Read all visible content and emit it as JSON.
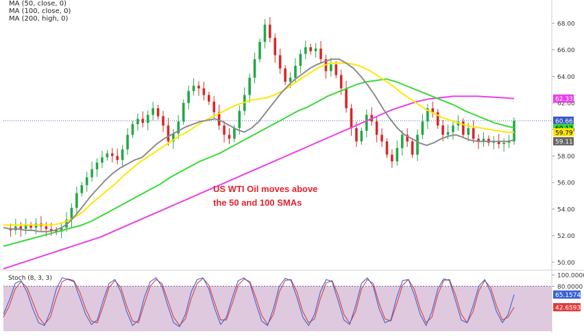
{
  "legend": {
    "ma50": "MA (50, close, 0)",
    "ma100": "MA (100, close, 0)",
    "ma200": "MA (200, high, 0)"
  },
  "annotation": {
    "line1": "US WTI Oil moves above",
    "line2": "the 50 and 100 SMAs"
  },
  "colors": {
    "ma50": "#8a8a8a",
    "ma100": "#ffe600",
    "ma200": "#39d836",
    "ma_high": "#e83ee8",
    "bull": "#22a845",
    "bear": "#d62828",
    "stoch_fill": "#d8bfd8",
    "stoch_k": "#3a62d6",
    "stoch_d": "#e33a3a",
    "price_line": "#3a56c8",
    "annotation": "#e8202a"
  },
  "chart_data": [
    {
      "type": "line",
      "title": "",
      "ylim": [
        49.5,
        69.5
      ],
      "yticks": [
        "68.00",
        "66.00",
        "64.00",
        "62.00",
        "60.00",
        "58.00",
        "56.00",
        "54.00",
        "52.00",
        "50.00"
      ],
      "current_price": 60.66,
      "price_labels": [
        {
          "text": "62.33",
          "value": 62.33,
          "color": "#e83ee8",
          "text_color": "#ffffff"
        },
        {
          "text": "60.66",
          "value": 60.66,
          "color": "#3a56c8",
          "text_color": "#ffffff"
        },
        {
          "text": "60.12",
          "value": 60.12,
          "color": "#39d836",
          "text_color": "#000000"
        },
        {
          "text": "59.79",
          "value": 59.79,
          "color": "#ffe600",
          "text_color": "#000000"
        },
        {
          "text": "59.11",
          "value": 59.11,
          "color": "#666666",
          "text_color": "#ffffff"
        }
      ],
      "price_series": [
        52.5,
        52.4,
        52.7,
        52.5,
        52.8,
        52.6,
        52.9,
        52.7,
        52.5,
        52.4,
        52.3,
        52.6,
        53.2,
        54.1,
        55.2,
        55.8,
        56.4,
        57.0,
        57.5,
        57.9,
        58.2,
        58.0,
        57.7,
        58.5,
        59.6,
        60.4,
        60.8,
        60.5,
        61.1,
        61.6,
        61.0,
        60.3,
        59.1,
        59.7,
        60.6,
        62.0,
        62.9,
        63.3,
        63.1,
        62.6,
        62.1,
        61.3,
        60.3,
        59.6,
        59.3,
        60.1,
        61.4,
        62.6,
        63.9,
        65.3,
        66.6,
        67.9,
        66.9,
        65.6,
        64.6,
        63.6,
        63.9,
        64.8,
        65.7,
        66.2,
        65.9,
        66.1,
        65.3,
        64.4,
        64.9,
        64.1,
        63.1,
        61.6,
        60.1,
        59.1,
        59.9,
        61.1,
        60.6,
        59.6,
        59.1,
        58.1,
        57.6,
        58.6,
        59.6,
        59.1,
        58.1,
        59.6,
        60.6,
        61.6,
        61.3,
        60.3,
        59.6,
        59.8,
        60.3,
        60.6,
        59.6,
        60.1,
        59.3,
        59.1,
        59.3,
        59.0,
        59.1,
        58.9,
        59.0,
        59.1,
        60.66
      ],
      "ma50": [
        52.6,
        52.5,
        52.5,
        52.4,
        52.4,
        52.3,
        52.3,
        52.4,
        52.6,
        53.0,
        53.6,
        54.3,
        55.0,
        55.6,
        56.2,
        56.7,
        57.1,
        57.4,
        57.7,
        57.9,
        58.4,
        58.9,
        59.3,
        59.6,
        59.9,
        60.2,
        60.4,
        60.6,
        60.7,
        60.8,
        60.6,
        60.3,
        60.0,
        59.8,
        60.1,
        60.6,
        61.3,
        62.0,
        62.7,
        63.3,
        63.8,
        64.2,
        64.6,
        64.9,
        65.1,
        65.3,
        65.3,
        65.0,
        64.6,
        64.0,
        63.3,
        62.5,
        61.6,
        60.8,
        60.1,
        59.6,
        59.3,
        59.0,
        58.8,
        59.0,
        59.3,
        59.5,
        59.6,
        59.4,
        59.2,
        59.1,
        59.1,
        59.1,
        59.1,
        59.1,
        59.2
      ],
      "ma100": [
        52.8,
        52.8,
        52.8,
        52.8,
        52.8,
        52.8,
        52.8,
        52.9,
        53.1,
        53.4,
        53.8,
        54.4,
        54.9,
        55.4,
        55.9,
        56.5,
        57.0,
        57.5,
        57.9,
        58.3,
        58.7,
        59.1,
        59.5,
        59.8,
        60.2,
        60.6,
        60.9,
        61.2,
        61.5,
        61.8,
        62.0,
        62.2,
        62.3,
        62.4,
        62.6,
        62.9,
        63.3,
        63.7,
        64.1,
        64.5,
        64.8,
        65.0,
        65.0,
        65.0,
        64.9,
        64.7,
        64.4,
        64.0,
        63.6,
        63.2,
        62.7,
        62.3,
        61.9,
        61.5,
        61.2,
        60.9,
        60.7,
        60.5,
        60.3,
        60.2,
        60.1,
        60.0,
        59.9,
        59.8,
        59.79
      ],
      "ma200": [
        51.2,
        51.4,
        51.6,
        51.8,
        52.0,
        52.2,
        52.4,
        52.6,
        52.8,
        53.1,
        53.5,
        53.9,
        54.3,
        54.7,
        55.1,
        55.5,
        55.9,
        56.4,
        56.8,
        57.2,
        57.6,
        57.9,
        58.2,
        58.6,
        59.0,
        59.4,
        59.8,
        60.2,
        60.6,
        61.0,
        61.4,
        61.7,
        62.1,
        62.5,
        62.8,
        63.1,
        63.4,
        63.6,
        63.7,
        63.8,
        63.6,
        63.3,
        63.0,
        62.7,
        62.4,
        62.1,
        61.8,
        61.4,
        61.1,
        60.8,
        60.5,
        60.3,
        60.12
      ],
      "ma_high": [
        49.5,
        49.8,
        50.1,
        50.4,
        50.7,
        51.0,
        51.3,
        51.6,
        51.9,
        52.3,
        52.7,
        53.1,
        53.5,
        53.9,
        54.3,
        54.7,
        55.1,
        55.5,
        55.9,
        56.3,
        56.7,
        57.1,
        57.5,
        57.9,
        58.3,
        58.7,
        59.1,
        59.5,
        59.9,
        60.3,
        60.7,
        61.1,
        61.5,
        61.8,
        62.1,
        62.3,
        62.4,
        62.5,
        62.5,
        62.5,
        62.45,
        62.4,
        62.33
      ]
    },
    {
      "type": "line",
      "title": "Stoch (8, 3, 3)",
      "ylim": [
        0,
        100
      ],
      "yticks": [
        "100.0000",
        "80.0000"
      ],
      "overbought": 80,
      "oversold": 20,
      "price_labels": [
        {
          "text": "65.1574",
          "value": 65.1574,
          "color": "#3a62d6",
          "text_color": "#ffffff"
        },
        {
          "text": "42.6593",
          "value": 42.6593,
          "color": "#e33a3a",
          "text_color": "#ffffff"
        }
      ],
      "k": [
        30,
        55,
        85,
        90,
        70,
        40,
        15,
        10,
        35,
        75,
        95,
        92,
        88,
        60,
        30,
        12,
        20,
        55,
        85,
        92,
        70,
        35,
        10,
        20,
        60,
        88,
        95,
        80,
        45,
        15,
        8,
        30,
        70,
        92,
        95,
        75,
        40,
        12,
        25,
        60,
        90,
        95,
        85,
        50,
        18,
        10,
        40,
        80,
        94,
        90,
        60,
        25,
        10,
        30,
        70,
        92,
        88,
        55,
        20,
        12,
        45,
        85,
        95,
        80,
        40,
        15,
        20,
        60,
        90,
        92,
        65,
        30,
        10,
        35,
        75,
        93,
        90,
        55,
        20,
        15,
        45,
        80,
        92,
        70,
        35,
        15,
        30,
        65.1574
      ],
      "d": [
        25,
        45,
        75,
        88,
        78,
        52,
        25,
        12,
        25,
        60,
        88,
        93,
        90,
        70,
        40,
        18,
        15,
        45,
        78,
        90,
        78,
        45,
        18,
        15,
        48,
        80,
        92,
        85,
        55,
        25,
        10,
        22,
        58,
        85,
        94,
        82,
        50,
        20,
        20,
        50,
        82,
        93,
        88,
        60,
        28,
        12,
        30,
        70,
        90,
        92,
        70,
        35,
        15,
        22,
        58,
        86,
        90,
        65,
        30,
        14,
        35,
        75,
        92,
        85,
        50,
        22,
        18,
        48,
        82,
        92,
        75,
        40,
        15,
        25,
        65,
        90,
        92,
        65,
        30,
        15,
        35,
        72,
        90,
        78,
        45,
        20,
        25,
        42.6593
      ]
    }
  ]
}
